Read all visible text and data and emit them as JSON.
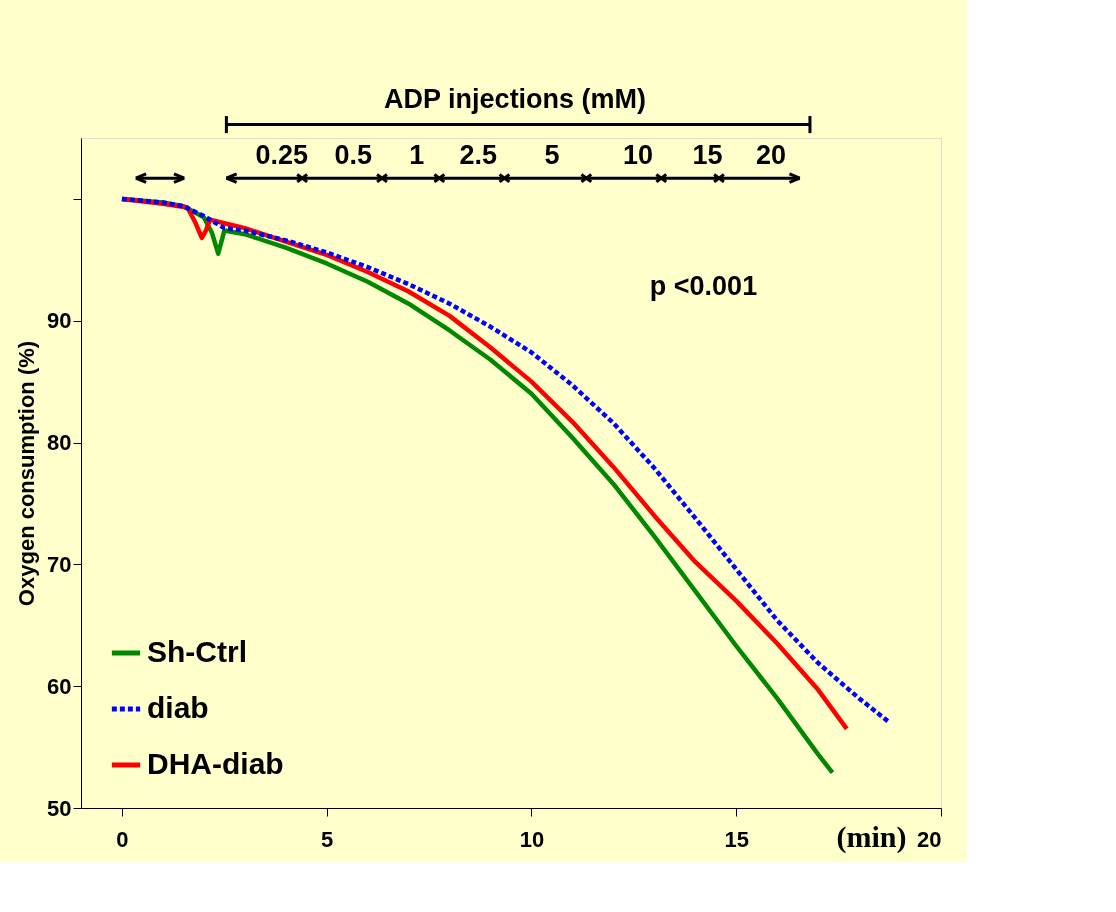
{
  "chart_data": {
    "type": "line",
    "ylabel": "Oxygen consumption (%)",
    "xlabel": "(min)",
    "xlim": [
      -1,
      20
    ],
    "xticks": [
      0,
      5,
      10,
      15,
      20
    ],
    "ylim": [
      50,
      105
    ],
    "yticks": [
      50,
      60,
      70,
      80,
      90,
      {
        "value": 100,
        "label": null
      }
    ],
    "grid": false,
    "legend": "bottom left",
    "marker": "none",
    "series": [
      {
        "name": "Sh-Ctrl",
        "color": "#008800",
        "line_style": "solid",
        "x": [
          0,
          1,
          1.5,
          2,
          2.2,
          2.35,
          2.5,
          3,
          4,
          5,
          6,
          7,
          8,
          9,
          10,
          11,
          12,
          13,
          14,
          15,
          16,
          17,
          17.35
        ],
        "values": [
          100,
          99.7,
          99.4,
          98.5,
          97.2,
          95.5,
          97.4,
          97.1,
          96.0,
          94.7,
          93.2,
          91.4,
          89.2,
          86.8,
          84.0,
          80.4,
          76.6,
          72.3,
          67.8,
          63.3,
          59.0,
          54.4,
          52.9
        ]
      },
      {
        "name": "diab",
        "color": "#0000ff",
        "line_style": "dashed",
        "x": [
          0,
          1,
          1.5,
          2,
          2.5,
          3,
          4,
          5,
          6,
          7,
          8,
          9,
          10,
          11,
          12,
          13,
          14,
          15,
          16,
          17,
          18,
          18.75
        ],
        "values": [
          100,
          99.7,
          99.4,
          98.6,
          97.6,
          97.4,
          96.6,
          95.6,
          94.4,
          93.0,
          91.4,
          89.5,
          87.4,
          84.7,
          81.6,
          77.9,
          73.8,
          69.6,
          65.4,
          61.9,
          59.0,
          57.0
        ]
      },
      {
        "name": "DHA-diab",
        "color": "#ff0000",
        "line_style": "solid",
        "x": [
          0,
          1,
          1.6,
          1.8,
          1.95,
          2.05,
          2.15,
          2.5,
          3,
          4,
          5,
          6,
          7,
          8,
          9,
          10,
          11,
          12,
          13,
          14,
          15,
          16,
          17,
          17.7
        ],
        "values": [
          100,
          99.6,
          99.3,
          98.0,
          96.8,
          97.4,
          98.3,
          98.0,
          97.6,
          96.5,
          95.4,
          94.0,
          92.4,
          90.4,
          87.8,
          85.0,
          81.7,
          78.0,
          74.0,
          70.2,
          67.0,
          63.5,
          59.7,
          56.5
        ]
      }
    ],
    "annotations": [
      "ADP injections (mM)",
      "0.25",
      "0.5",
      "1",
      "2.5",
      "5",
      "10",
      "15",
      "20",
      "p <0.001"
    ]
  }
}
